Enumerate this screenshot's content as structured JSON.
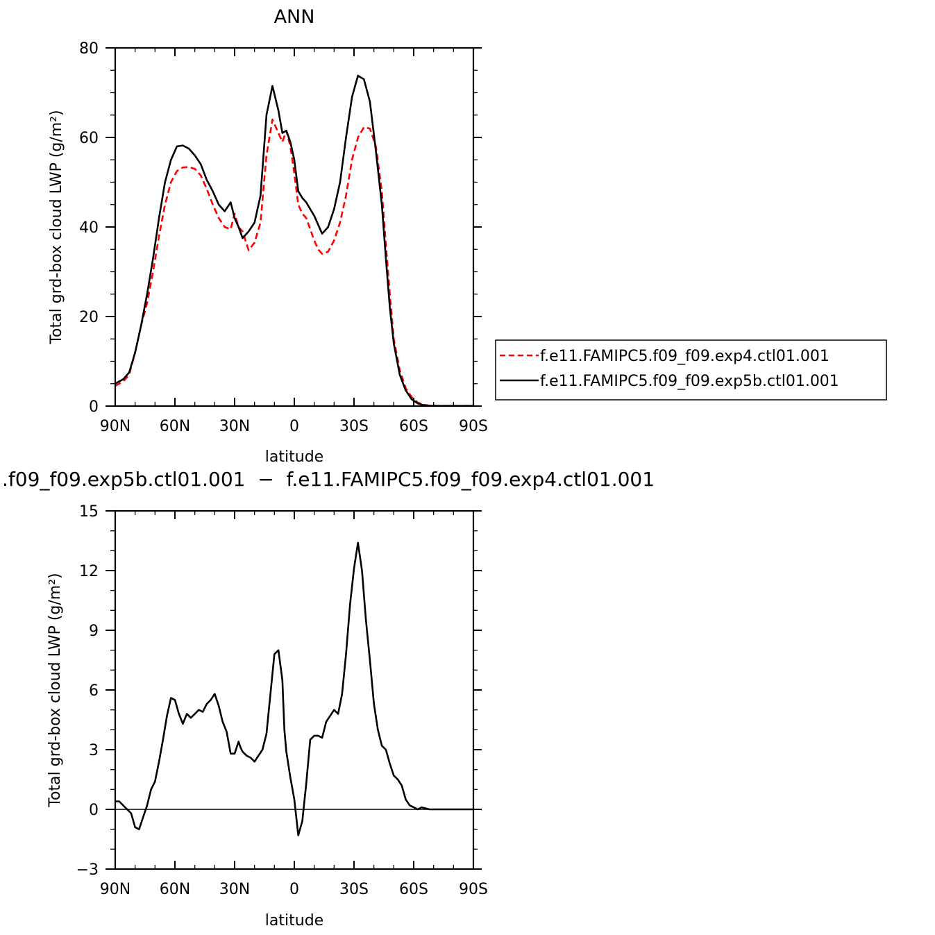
{
  "chart_data": [
    {
      "type": "line",
      "title": "ANN",
      "xlabel": "latitude",
      "ylabel": "Total grd-box cloud LWP (g/m²)",
      "xlim": [
        90,
        -90
      ],
      "ylim": [
        0,
        80
      ],
      "x_ticks": [
        90,
        60,
        30,
        0,
        -30,
        -60,
        -90
      ],
      "x_tick_labels": [
        "90N",
        "60N",
        "30N",
        "0",
        "30S",
        "60S",
        "90S"
      ],
      "y_ticks": [
        0,
        20,
        40,
        60,
        80
      ],
      "y_tick_labels": [
        "0",
        "20",
        "40",
        "60",
        "80"
      ],
      "legend_position": "right",
      "series": [
        {
          "name": "f.e11.FAMIPC5.f09_f09.exp4.ctl01.001",
          "color": "#ff0000",
          "dash": "dashed",
          "x": [
            90,
            86,
            83,
            80,
            77,
            74,
            71,
            68,
            65,
            62,
            59,
            56,
            53,
            50,
            47,
            44,
            41,
            38,
            35,
            32,
            30,
            28,
            26,
            23,
            20,
            17,
            14,
            11,
            8,
            6,
            4,
            2,
            0,
            -2,
            -4,
            -6,
            -8,
            -10,
            -12,
            -14,
            -17,
            -20,
            -23,
            -26,
            -29,
            -32,
            -35,
            -38,
            -41,
            -44,
            -46,
            -48,
            -50,
            -53,
            -56,
            -59,
            -62,
            -65,
            -68,
            -71,
            -74,
            -77,
            -80,
            -84,
            -88,
            -90
          ],
          "values": [
            4.5,
            5.5,
            7,
            12,
            18,
            23,
            30,
            38,
            45,
            50,
            52.5,
            53.3,
            53.4,
            53,
            51.5,
            48.5,
            45,
            42,
            40,
            39.5,
            43,
            40,
            39,
            34.8,
            36.5,
            41,
            56,
            64,
            61,
            59,
            61.5,
            58,
            52,
            45,
            43,
            42,
            39.5,
            37,
            35,
            34,
            34.5,
            37,
            41,
            47,
            55,
            60,
            62.3,
            62,
            58,
            48,
            36,
            25,
            15,
            8,
            4,
            2,
            0.8,
            0.3,
            0.1,
            0.05,
            0.05,
            0.05,
            0.05,
            0.05,
            0.05,
            0.05
          ]
        },
        {
          "name": "f.e11.FAMIPC5.f09_f09.exp5b.ctl01.001",
          "color": "#000000",
          "dash": "solid",
          "x": [
            90,
            86,
            83,
            80,
            77,
            74,
            71,
            68,
            65,
            62,
            59,
            56,
            53,
            50,
            47,
            44,
            41,
            38,
            35,
            32,
            30,
            28,
            26,
            23,
            20,
            17,
            14,
            11,
            8,
            6,
            4,
            2,
            0,
            -2,
            -4,
            -6,
            -8,
            -10,
            -12,
            -14,
            -17,
            -20,
            -23,
            -26,
            -29,
            -32,
            -35,
            -38,
            -41,
            -44,
            -46,
            -48,
            -50,
            -53,
            -56,
            -59,
            -62,
            -65,
            -68,
            -71,
            -74,
            -77,
            -80,
            -84,
            -88,
            -90
          ],
          "values": [
            5,
            6,
            7.5,
            12,
            18,
            25,
            33,
            42,
            50,
            55,
            58,
            58.2,
            57.5,
            56,
            54,
            50.5,
            48,
            45,
            43.5,
            45.5,
            42,
            40,
            37.5,
            39,
            41,
            47,
            65,
            71.5,
            66,
            61,
            61.5,
            59,
            55,
            48,
            46.5,
            45.5,
            44,
            42.5,
            40.5,
            38.5,
            40,
            44,
            50,
            60,
            69,
            73.8,
            73,
            68,
            57,
            45,
            33,
            22,
            14,
            7,
            3.5,
            1.5,
            0.6,
            0.2,
            0.1,
            0.05,
            0.05,
            0.05,
            0.05,
            0.05,
            0.05,
            0.05
          ]
        }
      ]
    },
    {
      "type": "line",
      "title": ".f09_f09.exp5b.ctl01.001  −  f.e11.FAMIPC5.f09_f09.exp4.ctl01.001",
      "xlabel": "latitude",
      "ylabel": "Total grd-box cloud LWP (g/m²)",
      "xlim": [
        90,
        -90
      ],
      "ylim": [
        -3,
        15
      ],
      "x_ticks": [
        90,
        60,
        30,
        0,
        -30,
        -60,
        -90
      ],
      "x_tick_labels": [
        "90N",
        "60N",
        "30N",
        "0",
        "30S",
        "60S",
        "90S"
      ],
      "y_ticks": [
        -3,
        0,
        3,
        6,
        9,
        12,
        15
      ],
      "y_tick_labels": [
        "−3",
        "0",
        "3",
        "6",
        "9",
        "12",
        "15"
      ],
      "series": [
        {
          "color": "#000000",
          "dash": "solid",
          "x": [
            90,
            88,
            86,
            84,
            82,
            80,
            78,
            76,
            74,
            72,
            70,
            68,
            66,
            64,
            62,
            60,
            58,
            56,
            54,
            52,
            50,
            48,
            46,
            44,
            42,
            40,
            38,
            36,
            34,
            32,
            30,
            28,
            27,
            26,
            24,
            22,
            20,
            18,
            16,
            14,
            12,
            10,
            8,
            6,
            5,
            4,
            2,
            0,
            -2,
            -4,
            -6,
            -8,
            -10,
            -12,
            -14,
            -16,
            -18,
            -20,
            -22,
            -24,
            -26,
            -28,
            -30,
            -32,
            -34,
            -36,
            -38,
            -40,
            -42,
            -44,
            -46,
            -48,
            -50,
            -52,
            -54,
            -56,
            -58,
            -60,
            -62,
            -64,
            -66,
            -68,
            -70,
            -74,
            -78,
            -82,
            -86,
            -90
          ],
          "values": [
            0.4,
            0.4,
            0.2,
            0,
            -0.2,
            -0.9,
            -1,
            -0.4,
            0.2,
            1,
            1.4,
            2.4,
            3.5,
            4.7,
            5.6,
            5.5,
            4.8,
            4.3,
            4.8,
            4.6,
            4.8,
            5,
            4.9,
            5.3,
            5.5,
            5.8,
            5.2,
            4.4,
            3.9,
            2.8,
            2.8,
            3.4,
            3.1,
            2.9,
            2.7,
            2.6,
            2.4,
            2.7,
            3,
            3.8,
            5.8,
            7.8,
            8,
            6.5,
            4,
            2.9,
            1.6,
            0.5,
            -1.3,
            -0.6,
            1.3,
            3.5,
            3.7,
            3.7,
            3.6,
            4.4,
            4.7,
            5,
            4.8,
            5.8,
            7.8,
            10.3,
            12.1,
            13.4,
            12,
            9.5,
            7.5,
            5.3,
            4,
            3.2,
            3,
            2.3,
            1.7,
            1.5,
            1.2,
            0.5,
            0.2,
            0.1,
            0,
            0.1,
            0.05,
            0,
            0,
            0,
            0,
            0,
            0,
            0
          ]
        }
      ]
    }
  ]
}
